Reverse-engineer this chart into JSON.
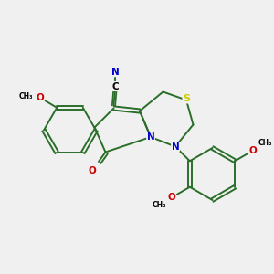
{
  "background_color": "#f0f0f0",
  "bond_color": "#2a6e2a",
  "atom_S_color": "#cccc00",
  "atom_N_color": "#0000cc",
  "atom_O_color": "#cc0000",
  "figsize": [
    3.0,
    3.0
  ],
  "dpi": 100,
  "xlim": [
    0,
    10
  ],
  "ylim": [
    0,
    10
  ]
}
